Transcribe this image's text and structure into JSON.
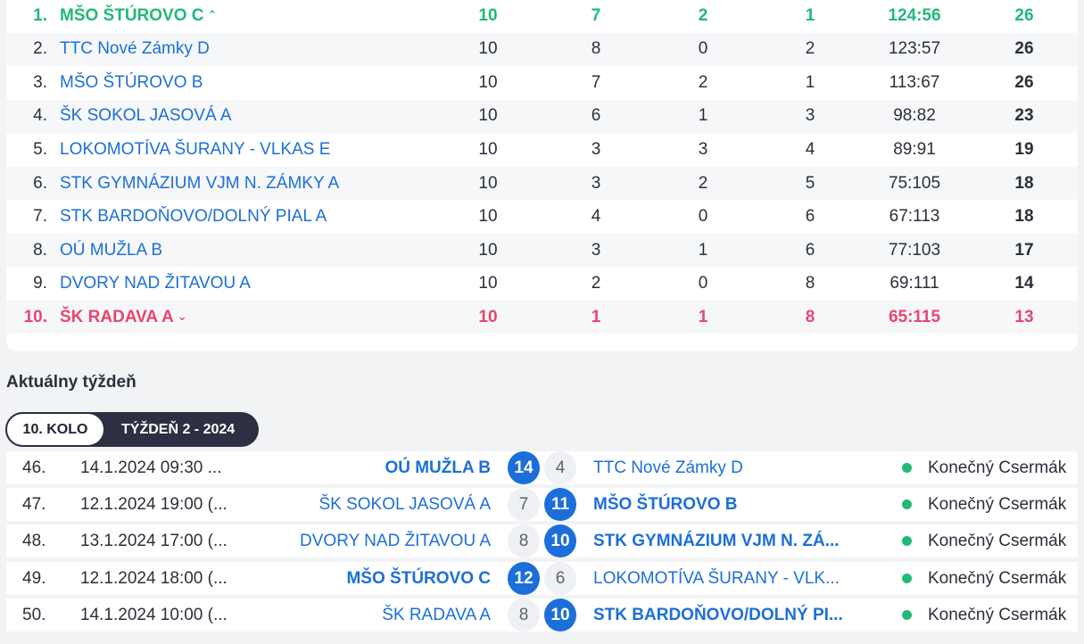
{
  "standings": [
    {
      "rank": "1.",
      "team": "MŠO ŠTÚROVO C",
      "played": "10",
      "won": "7",
      "draw": "2",
      "lost": "1",
      "score": "124:56",
      "points": "26",
      "state": "promo",
      "arrow": "⌃"
    },
    {
      "rank": "2.",
      "team": "TTC Nové Zámky D",
      "played": "10",
      "won": "8",
      "draw": "0",
      "lost": "2",
      "score": "123:57",
      "points": "26",
      "state": ""
    },
    {
      "rank": "3.",
      "team": "MŠO ŠTÚROVO B",
      "played": "10",
      "won": "7",
      "draw": "2",
      "lost": "1",
      "score": "113:67",
      "points": "26",
      "state": ""
    },
    {
      "rank": "4.",
      "team": "ŠK SOKOL JASOVÁ A",
      "played": "10",
      "won": "6",
      "draw": "1",
      "lost": "3",
      "score": "98:82",
      "points": "23",
      "state": ""
    },
    {
      "rank": "5.",
      "team": "LOKOMOTÍVA ŠURANY - VLKAS E",
      "played": "10",
      "won": "3",
      "draw": "3",
      "lost": "4",
      "score": "89:91",
      "points": "19",
      "state": ""
    },
    {
      "rank": "6.",
      "team": "STK GYMNÁZIUM VJM N. ZÁMKY A",
      "played": "10",
      "won": "3",
      "draw": "2",
      "lost": "5",
      "score": "75:105",
      "points": "18",
      "state": ""
    },
    {
      "rank": "7.",
      "team": "STK BARDOŇOVO/DOLNÝ PIAL A",
      "played": "10",
      "won": "4",
      "draw": "0",
      "lost": "6",
      "score": "67:113",
      "points": "18",
      "state": ""
    },
    {
      "rank": "8.",
      "team": "OÚ MUŽLA B",
      "played": "10",
      "won": "3",
      "draw": "1",
      "lost": "6",
      "score": "77:103",
      "points": "17",
      "state": ""
    },
    {
      "rank": "9.",
      "team": "DVORY NAD ŽITAVOU A",
      "played": "10",
      "won": "2",
      "draw": "0",
      "lost": "8",
      "score": "69:111",
      "points": "14",
      "state": ""
    },
    {
      "rank": "10.",
      "team": "ŠK RADAVA A",
      "played": "10",
      "won": "1",
      "draw": "1",
      "lost": "8",
      "score": "65:115",
      "points": "13",
      "state": "releg",
      "arrow": "⌄"
    }
  ],
  "week": {
    "title": "Aktuálny týždeň",
    "round_label": "10. KOLO",
    "week_label": "TÝŽDEŇ 2 - 2024"
  },
  "matches": [
    {
      "no": "46.",
      "date": "14.1.2024 09:30 ...",
      "home": "OÚ MUŽLA B",
      "home_score": "14",
      "away_score": "4",
      "away": "TTC Nové Zámky D",
      "winner": "home",
      "status": "Konečný Csermák"
    },
    {
      "no": "47.",
      "date": "12.1.2024 19:00 (...",
      "home": "ŠK SOKOL JASOVÁ A",
      "home_score": "7",
      "away_score": "11",
      "away": "MŠO ŠTÚROVO B",
      "winner": "away",
      "status": "Konečný Csermák"
    },
    {
      "no": "48.",
      "date": "13.1.2024 17:00 (...",
      "home": "DVORY NAD ŽITAVOU A",
      "home_score": "8",
      "away_score": "10",
      "away": "STK GYMNÁZIUM VJM N. ZÁ...",
      "winner": "away",
      "status": "Konečný Csermák"
    },
    {
      "no": "49.",
      "date": "12.1.2024 18:00 (...",
      "home": "MŠO ŠTÚROVO C",
      "home_score": "12",
      "away_score": "6",
      "away": "LOKOMOTÍVA ŠURANY - VLK...",
      "winner": "home",
      "status": "Konečný Csermák"
    },
    {
      "no": "50.",
      "date": "14.1.2024 10:00 (...",
      "home": "ŠK RADAVA A",
      "home_score": "8",
      "away_score": "10",
      "away": "STK BARDOŇOVO/DOLNÝ PI...",
      "winner": "away",
      "status": "Konečný Csermák"
    }
  ]
}
